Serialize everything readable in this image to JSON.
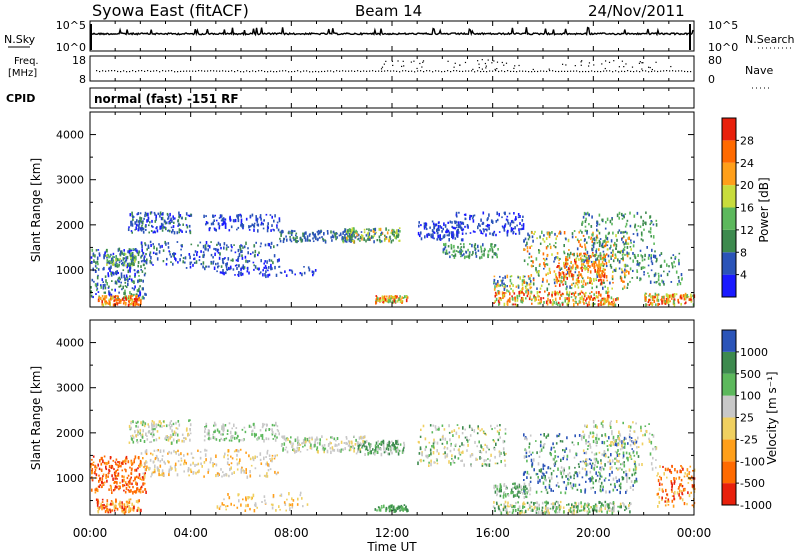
{
  "header": {
    "station": "Syowa East (fitACF)",
    "beam": "Beam 14",
    "date": "24/Nov/2011"
  },
  "top_panels": {
    "nsky_label": "N.Sky",
    "nsky_ticks": [
      "10^5",
      "10^0"
    ],
    "nsearch_label": "N.Search",
    "nsearch_ticks": [
      "10^5",
      "10^0"
    ],
    "freq_label": "Freq.",
    "freq_unit": "[MHz]",
    "freq_ticks": [
      "18",
      "8"
    ],
    "nave_label": "Nave",
    "nave_ticks": [
      "80",
      "0"
    ],
    "cpid_label": "CPID",
    "cpid_text": "normal (fast) -151 RF"
  },
  "colors": {
    "power": [
      "#1a1aff",
      "#2b54b8",
      "#3d8a4e",
      "#5cb85c",
      "#c8dc3c",
      "#ff9f1a",
      "#ff6a00",
      "#e8200c"
    ],
    "velocity": [
      "#e8200c",
      "#ff6a00",
      "#ff9f1a",
      "#f0d060",
      "#c8c8c8",
      "#5cb85c",
      "#3d8a4e",
      "#2b54b8"
    ]
  },
  "chart_data": [
    {
      "type": "heatmap",
      "name": "power",
      "ylabel": "Slant Range [km]",
      "xlabel": "Time UT",
      "xlim": [
        "00:00",
        "24:00"
      ],
      "ylim": [
        180,
        4500
      ],
      "y_ticks": [
        "1000",
        "2000",
        "3000",
        "4000"
      ],
      "x_ticks": [
        "00:00",
        "04:00",
        "08:00",
        "12:00",
        "16:00",
        "20:00",
        "00:00"
      ],
      "colorbar": {
        "label": "Power [dB]",
        "ticks": [
          "4",
          "8",
          "12",
          "16",
          "20",
          "24",
          "28"
        ]
      }
    },
    {
      "type": "heatmap",
      "name": "velocity",
      "ylabel": "Slant Range [km]",
      "xlabel": "Time UT",
      "xlim": [
        "00:00",
        "24:00"
      ],
      "ylim": [
        180,
        4500
      ],
      "y_ticks": [
        "1000",
        "2000",
        "3000",
        "4000"
      ],
      "x_ticks": [
        "00:00",
        "04:00",
        "08:00",
        "12:00",
        "16:00",
        "20:00",
        "00:00"
      ],
      "colorbar": {
        "label": "Velocity [m s⁻¹]",
        "ticks": [
          "1000",
          "500",
          "100",
          "25",
          "-25",
          "-100",
          "-500",
          "-1000"
        ]
      }
    }
  ]
}
